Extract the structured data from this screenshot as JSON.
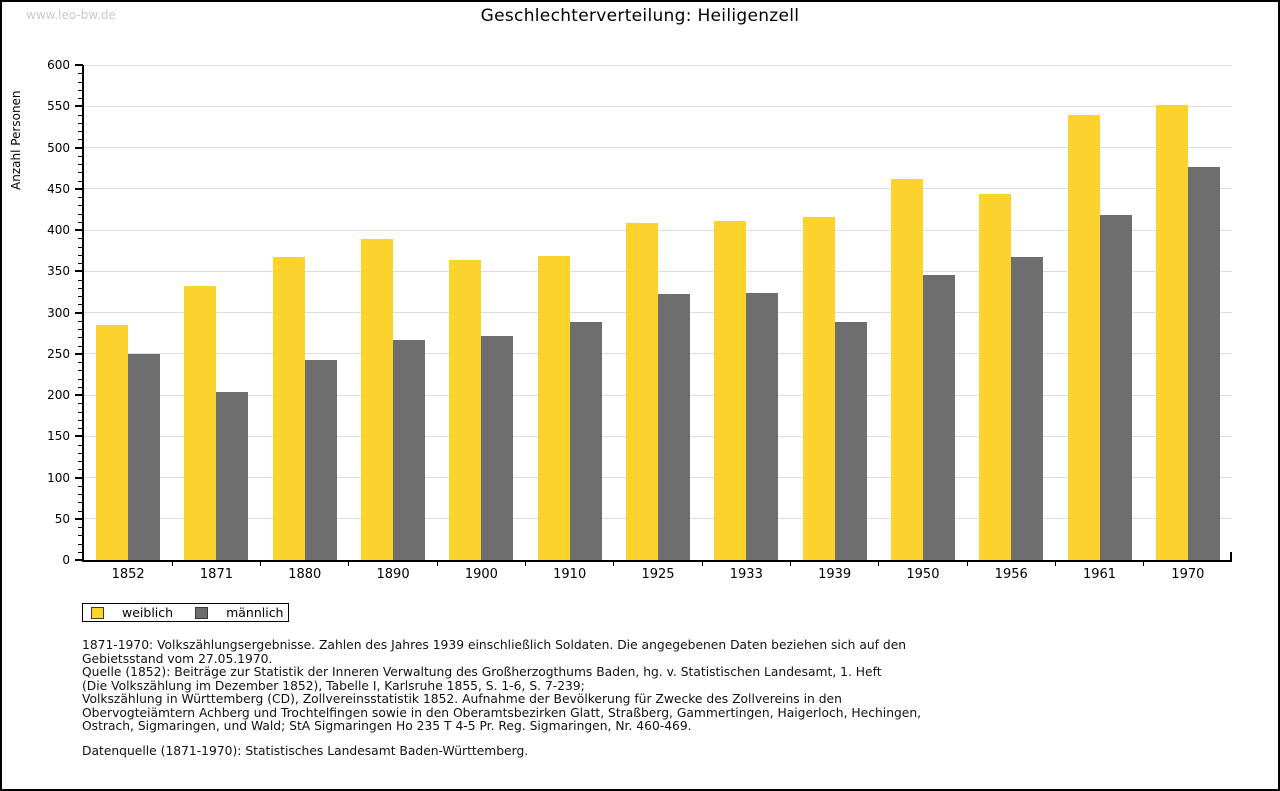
{
  "page": {
    "watermark": "www.leo-bw.de",
    "background": "#ffffff",
    "frame_color": "#000000"
  },
  "chart_data": {
    "type": "bar",
    "title": "Geschlechterverteilung: Heiligenzell",
    "xlabel": "",
    "ylabel": "Anzahl Personen",
    "categories": [
      "1852",
      "1871",
      "1880",
      "1890",
      "1900",
      "1910",
      "1925",
      "1933",
      "1939",
      "1950",
      "1956",
      "1961",
      "1970"
    ],
    "series": [
      {
        "name": "weiblich",
        "color": "#FCD32D",
        "values": [
          285,
          332,
          367,
          389,
          364,
          369,
          408,
          411,
          416,
          462,
          444,
          539,
          552
        ]
      },
      {
        "name": "männlich",
        "color": "#6E6E6E",
        "values": [
          250,
          204,
          243,
          267,
          272,
          288,
          323,
          324,
          288,
          345,
          367,
          418,
          476
        ]
      }
    ],
    "ylim": [
      0,
      600
    ],
    "y_major_step": 50,
    "y_minor_step": 10,
    "grid": true,
    "gridline_color": "#dddddd",
    "axis_color": "#000000",
    "legend_position": "bottom-left"
  },
  "footer": {
    "lines": [
      "1871-1970: Volkszählungsergebnisse. Zahlen des Jahres 1939 einschließlich Soldaten. Die angegebenen Daten beziehen sich auf den",
      "Gebietsstand vom 27.05.1970.",
      "Quelle (1852): Beiträge zur Statistik der Inneren Verwaltung des Großherzogthums Baden, hg. v. Statistischen Landesamt, 1. Heft",
      "(Die Volkszählung im Dezember 1852), Tabelle I, Karlsruhe 1855, S. 1-6, S. 7-239;",
      "Volkszählung in Württemberg (CD), Zollvereinsstatistik 1852. Aufnahme der Bevölkerung für Zwecke des Zollvereins in den",
      "Obervogteiämtern Achberg und Trochtelfingen sowie in den Oberamtsbezirken Glatt, Straßberg, Gammertingen, Haigerloch, Hechingen,",
      "Ostrach, Sigmaringen, und Wald; StA Sigmaringen Ho 235 T 4-5 Pr. Reg. Sigmaringen, Nr. 460-469."
    ],
    "datasource": "Datenquelle (1871-1970): Statistisches Landesamt Baden-Württemberg."
  }
}
